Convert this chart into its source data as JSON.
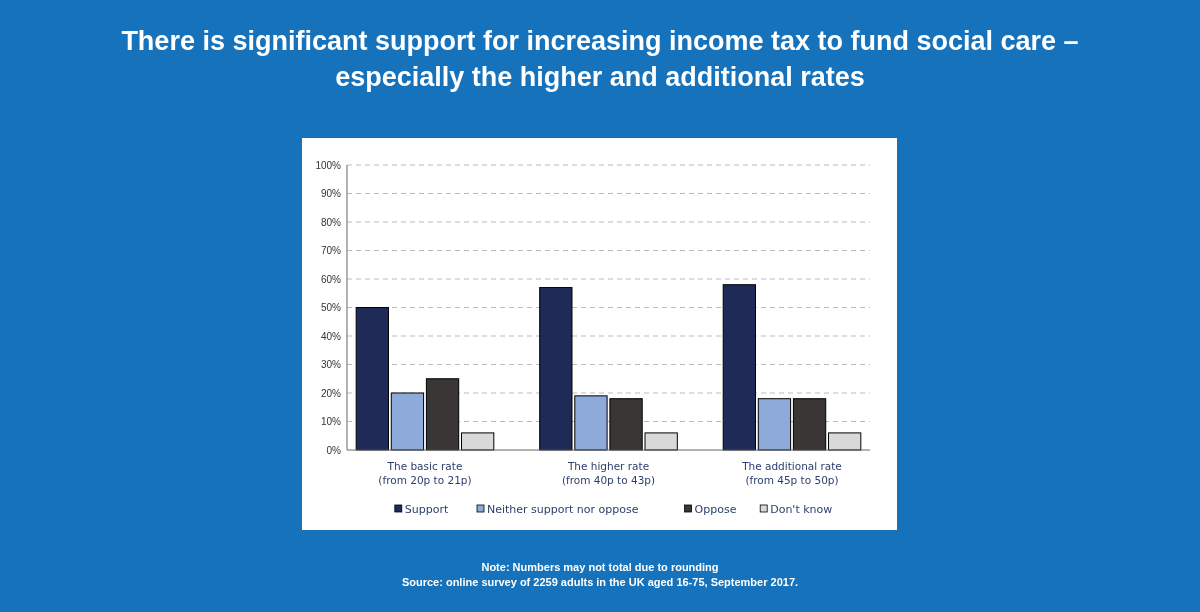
{
  "chart_data": {
    "type": "bar",
    "title": "There is significant support for increasing income tax to fund social care –\nespecially the higher and additional rates",
    "categories": [
      "The basic rate\n(from 20p to 21p)",
      "The higher rate\n(from 40p to 43p)",
      "The additional rate\n(from 45p to 50p)"
    ],
    "series": [
      {
        "name": "Support",
        "color": "#1f2a56",
        "values": [
          50,
          57,
          58
        ]
      },
      {
        "name": "Neither support nor oppose",
        "color": "#8eaadb",
        "values": [
          20,
          19,
          18
        ]
      },
      {
        "name": "Oppose",
        "color": "#3a3636",
        "values": [
          25,
          18,
          18
        ]
      },
      {
        "name": "Don't know",
        "color": "#d9d9d9",
        "values": [
          6,
          6,
          6
        ]
      }
    ],
    "ylim": [
      0,
      100
    ],
    "yticks": [
      {
        "value": 0,
        "label": "0%"
      },
      {
        "value": 10,
        "label": "10%"
      },
      {
        "value": 20,
        "label": "20%"
      },
      {
        "value": 30,
        "label": "30%"
      },
      {
        "value": 40,
        "label": "40%"
      },
      {
        "value": 50,
        "label": "50%"
      },
      {
        "value": 60,
        "label": "60%"
      },
      {
        "value": 70,
        "label": "70%"
      },
      {
        "value": 80,
        "label": "80%"
      },
      {
        "value": 90,
        "label": "90%"
      },
      {
        "value": 100,
        "label": "100%"
      }
    ],
    "grid": "y",
    "legend": "bottom",
    "annotations": [
      "Note: Numbers may not total due to rounding",
      "Source: online survey of 2259 adults in the UK aged 16-75, September 2017."
    ]
  }
}
